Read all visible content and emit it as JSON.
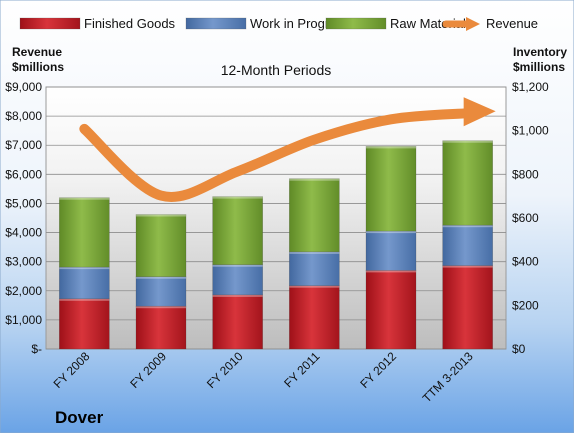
{
  "chart_data": {
    "type": "bar",
    "title": "12-Month Periods",
    "company": "Dover",
    "categories": [
      "FY 2008",
      "FY 2009",
      "FY 2010",
      "FY 2011",
      "FY 2012",
      "TTM 3-2013"
    ],
    "stacked": true,
    "series": [
      {
        "name": "Finished Goods",
        "axis": "right",
        "values": [
          230,
          196,
          248,
          290,
          360,
          382
        ],
        "color": "#c8202a"
      },
      {
        "name": "Work in Progress",
        "axis": "right",
        "values": [
          145,
          135,
          138,
          155,
          180,
          185
        ],
        "color": "#5b80b6"
      },
      {
        "name": "Raw Materials",
        "axis": "right",
        "values": [
          318,
          285,
          312,
          335,
          388,
          387
        ],
        "color": "#79a337"
      },
      {
        "name": "Revenue",
        "axis": "left",
        "type": "line",
        "values": [
          7560,
          5270,
          6100,
          7190,
          7890,
          8100
        ],
        "color": "#ea8a3c"
      }
    ],
    "left_axis": {
      "label": "Revenue\n$millions",
      "min": 0,
      "max": 9000,
      "step": 1000,
      "ticks": [
        "$-",
        "$1,000",
        "$2,000",
        "$3,000",
        "$4,000",
        "$5,000",
        "$6,000",
        "$7,000",
        "$8,000",
        "$9,000"
      ]
    },
    "right_axis": {
      "label": "Inventory\n$millions",
      "min": 0,
      "max": 1200,
      "step": 200,
      "ticks": [
        "$0",
        "$200",
        "$400",
        "$600",
        "$800",
        "$1,000",
        "$1,200"
      ]
    },
    "legend_position": "top",
    "grid": true
  }
}
